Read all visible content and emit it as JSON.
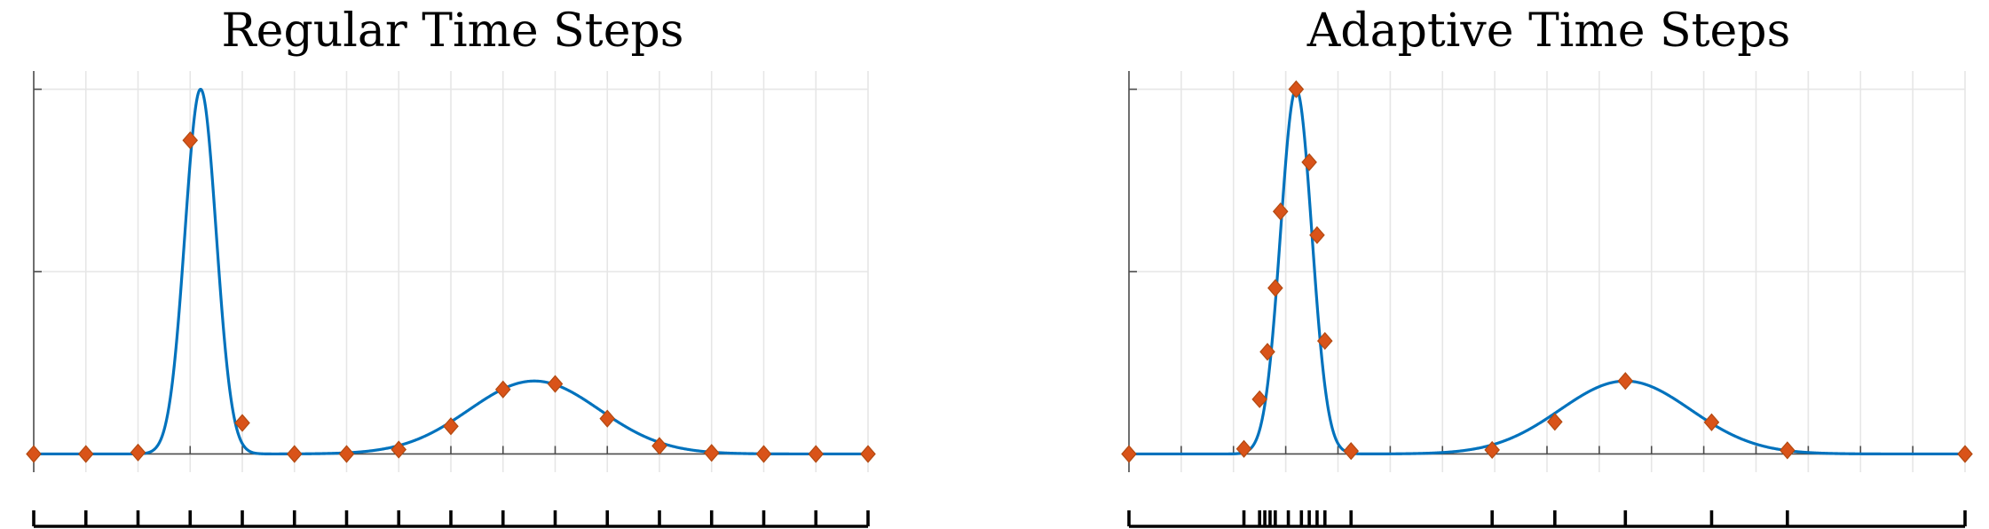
{
  "colors": {
    "curve": "#0072BD",
    "marker": "#D95319"
  },
  "chart_data": [
    {
      "type": "line",
      "title": "Regular Time Steps",
      "xlim": [
        0,
        16
      ],
      "ylim": [
        -0.05,
        1.05
      ],
      "xgrid": [
        0,
        1,
        2,
        3,
        4,
        5,
        6,
        7,
        8,
        9,
        10,
        11,
        12,
        13,
        14,
        15,
        16
      ],
      "ygrid": [
        0,
        0.5,
        1.0
      ],
      "grid": true,
      "curve_model": {
        "peaks": [
          {
            "amplitude": 1.0,
            "center": 3.2,
            "sigma": 0.3
          },
          {
            "amplitude": 0.2,
            "center": 9.6,
            "sigma": 1.25
          }
        ]
      },
      "markers": {
        "x": [
          0,
          1,
          2,
          3,
          4,
          5,
          6,
          7,
          8,
          9,
          10,
          11,
          12,
          13,
          14,
          15,
          16
        ],
        "y": [
          0,
          0,
          0.004,
          0.86,
          0.085,
          0,
          0,
          0.012,
          0.076,
          0.177,
          0.192,
          0.097,
          0.022,
          0.003,
          0,
          0,
          0
        ]
      },
      "rug": [
        0,
        1,
        2,
        3,
        4,
        5,
        6,
        7,
        8,
        9,
        10,
        11,
        12,
        13,
        14,
        15,
        16
      ]
    },
    {
      "type": "line",
      "title": "Adaptive Time Steps",
      "xlim": [
        0,
        16
      ],
      "ylim": [
        -0.05,
        1.05
      ],
      "xgrid": [
        0,
        1,
        2,
        3,
        4,
        5,
        6,
        7,
        8,
        9,
        10,
        11,
        12,
        13,
        14,
        15,
        16
      ],
      "ygrid": [
        0,
        0.5,
        1.0
      ],
      "grid": true,
      "curve_model": {
        "peaks": [
          {
            "amplitude": 1.0,
            "center": 3.2,
            "sigma": 0.3
          },
          {
            "amplitude": 0.2,
            "center": 9.5,
            "sigma": 1.25
          }
        ]
      },
      "markers": {
        "x": [
          0,
          2.2,
          2.5,
          2.65,
          2.8,
          2.9,
          3.2,
          3.45,
          3.6,
          3.75,
          4.25,
          6.95,
          8.15,
          9.5,
          11.15,
          12.6,
          16
        ],
        "y": [
          0,
          0.014,
          0.15,
          0.28,
          0.455,
          0.665,
          1.0,
          0.8,
          0.6,
          0.31,
          0.008,
          0.011,
          0.088,
          0.2,
          0.087,
          0.01,
          0
        ]
      },
      "rug": [
        0,
        2.2,
        2.5,
        2.6,
        2.7,
        2.8,
        3.05,
        3.3,
        3.45,
        3.6,
        3.75,
        4.25,
        6.95,
        8.15,
        9.5,
        11.15,
        12.6,
        16
      ]
    }
  ]
}
